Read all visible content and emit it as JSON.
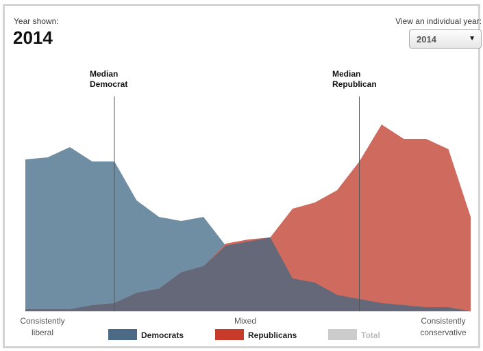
{
  "header": {
    "year_label": "Year shown:",
    "year_value": "2014",
    "view_label": "View an individual year:",
    "select_value": "2014"
  },
  "axis": {
    "left_line1": "Consistently",
    "left_line2": "liberal",
    "center": "Mixed",
    "right_line1": "Consistently",
    "right_line2": "conservative"
  },
  "medians": {
    "democrat_line1": "Median",
    "democrat_line2": "Democrat",
    "republican_line1": "Median",
    "republican_line2": "Republican"
  },
  "legend": [
    {
      "label": "Democrats",
      "color": "#4a6a86"
    },
    {
      "label": "Republicans",
      "color": "#c83a2a"
    },
    {
      "label": "Total",
      "color": "#cccccc"
    }
  ],
  "chart_data": {
    "type": "area",
    "x": [
      0,
      1,
      2,
      3,
      4,
      5,
      6,
      7,
      8,
      9,
      10,
      11,
      12,
      13,
      14,
      15,
      16,
      17,
      18,
      19,
      20
    ],
    "ylim": [
      0,
      10
    ],
    "grid": false,
    "median_democrat_x": 4,
    "median_republican_x": 15,
    "series": [
      {
        "name": "Democrats",
        "color": "#6f8ea3",
        "values": [
          7.4,
          7.5,
          8.0,
          7.3,
          7.3,
          5.4,
          4.6,
          4.4,
          4.6,
          3.2,
          2.8,
          2.4,
          1.6,
          1.4,
          0.8,
          0.6,
          0.4,
          0.3,
          0.2,
          0.2,
          0.0
        ]
      },
      {
        "name": "Republicans",
        "color": "#cf6a5e",
        "values": [
          0.0,
          0.0,
          0.0,
          0.3,
          0.4,
          0.9,
          1.1,
          1.9,
          2.2,
          3.3,
          3.5,
          3.6,
          5.0,
          5.3,
          5.9,
          7.3,
          9.1,
          8.4,
          8.4,
          7.9,
          4.6
        ]
      },
      {
        "name": "Overlap",
        "color": "#646878",
        "values": [
          0.1,
          0.1,
          0.1,
          0.3,
          0.4,
          0.9,
          1.1,
          1.9,
          2.2,
          3.2,
          3.4,
          3.6,
          1.6,
          1.4,
          0.8,
          0.6,
          0.4,
          0.3,
          0.2,
          0.2,
          0.0
        ]
      }
    ]
  }
}
